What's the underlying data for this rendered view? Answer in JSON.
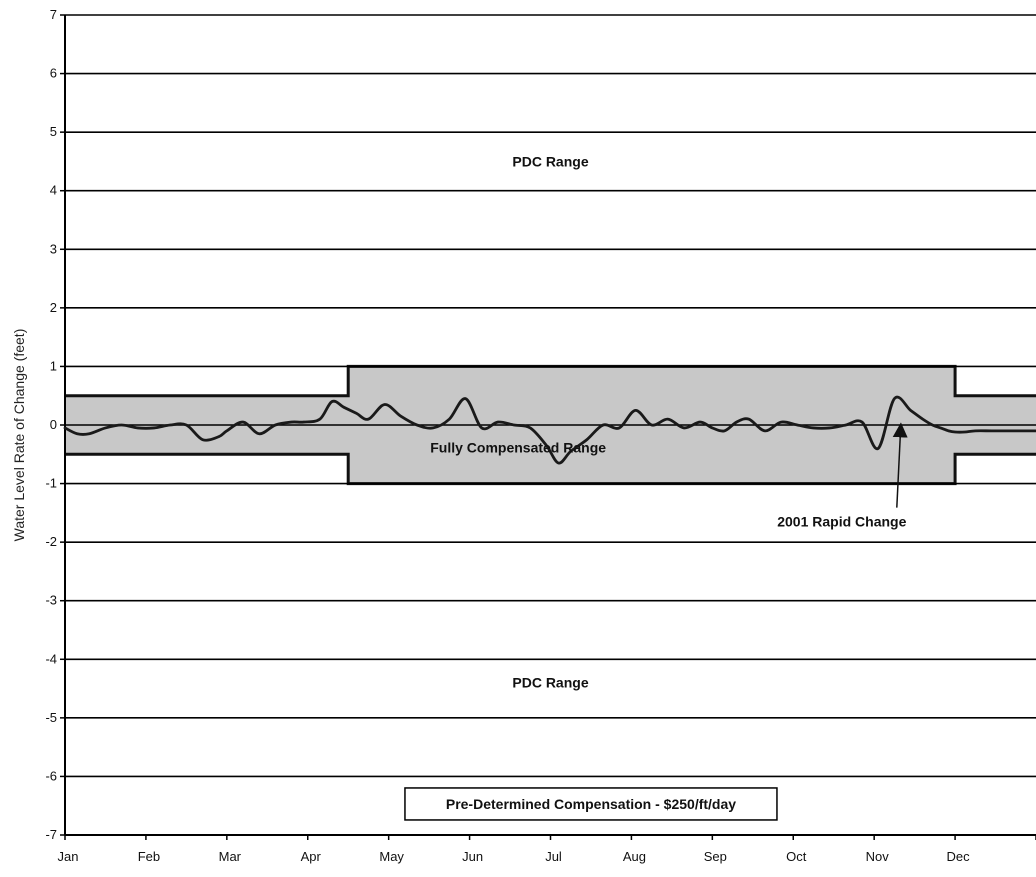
{
  "chart_data": {
    "type": "line",
    "xlabel": "",
    "ylabel": "Water Level Rate of Change (feet)",
    "ylim": [
      -7,
      7
    ],
    "yticks": [
      7,
      6,
      5,
      4,
      3,
      2,
      1,
      0,
      -1,
      -2,
      -3,
      -4,
      -5,
      -6,
      -7
    ],
    "categories": [
      "Jan",
      "Feb",
      "Mar",
      "Apr",
      "May",
      "Jun",
      "Jul",
      "Aug",
      "Sep",
      "Oct",
      "Nov",
      "Dec"
    ],
    "grid": true,
    "colors": {
      "band_fill": "#c8c8c8",
      "band_edge": "#111111",
      "gridline": "#000000",
      "series_line": "#1a1a1a"
    },
    "bands": {
      "fully_compensated": [
        {
          "x_start": 0.0,
          "x_end": 3.5,
          "lower": -0.5,
          "upper": 0.5
        },
        {
          "x_start": 3.5,
          "x_end": 11.0,
          "lower": -1.0,
          "upper": 1.0
        },
        {
          "x_start": 11.0,
          "x_end": 12.0,
          "lower": -0.5,
          "upper": 0.5
        }
      ]
    },
    "series": [
      {
        "name": "",
        "x": [
          0.0,
          0.15,
          0.3,
          0.5,
          0.7,
          0.9,
          1.1,
          1.3,
          1.5,
          1.7,
          1.9,
          2.0,
          2.2,
          2.4,
          2.6,
          2.8,
          2.95,
          3.15,
          3.3,
          3.45,
          3.6,
          3.75,
          3.95,
          4.15,
          4.35,
          4.55,
          4.75,
          4.95,
          5.15,
          5.35,
          5.55,
          5.75,
          5.95,
          6.1,
          6.25,
          6.45,
          6.65,
          6.85,
          7.05,
          7.25,
          7.45,
          7.65,
          7.85,
          8.0,
          8.15,
          8.3,
          8.45,
          8.65,
          8.85,
          9.05,
          9.25,
          9.45,
          9.65,
          9.85,
          10.05,
          10.25,
          10.45,
          10.6,
          10.72,
          10.82,
          10.92,
          11.0,
          11.12,
          11.25,
          11.45,
          11.65,
          11.85,
          12.0
        ],
        "y": [
          -0.05,
          -0.15,
          -0.15,
          -0.05,
          0.0,
          -0.05,
          -0.05,
          0.0,
          0.0,
          -0.25,
          -0.2,
          -0.1,
          0.05,
          -0.15,
          0.0,
          0.05,
          0.05,
          0.1,
          0.4,
          0.3,
          0.2,
          0.1,
          0.35,
          0.15,
          0.0,
          -0.05,
          0.1,
          0.45,
          -0.05,
          0.05,
          0.0,
          -0.05,
          -0.35,
          -0.65,
          -0.45,
          -0.25,
          0.0,
          -0.05,
          0.25,
          0.0,
          0.1,
          -0.05,
          0.05,
          -0.05,
          -0.1,
          0.05,
          0.1,
          -0.1,
          0.05,
          0.0,
          -0.05,
          -0.05,
          0.0,
          0.05,
          -0.4,
          0.45,
          0.25,
          0.1,
          0.0,
          -0.05,
          -0.1,
          -0.12,
          -0.12,
          -0.1,
          -0.1,
          -0.1,
          -0.1,
          -0.1
        ]
      }
    ],
    "annotations": [
      {
        "text": "PDC Range",
        "x": 6.0,
        "y": 4.5
      },
      {
        "text": "Fully Compensated Range",
        "x": 5.6,
        "y": -0.38
      },
      {
        "text": "PDC Range",
        "x": 6.0,
        "y": -4.4
      },
      {
        "text": "2001 Rapid Change",
        "x": 9.6,
        "y": -1.65,
        "arrow_to": [
          10.33,
          0.02
        ]
      },
      {
        "text": "Pre-Determined Compensation - $250/ft/day",
        "x": 6.5,
        "y": -6.47,
        "boxed": true
      }
    ]
  }
}
